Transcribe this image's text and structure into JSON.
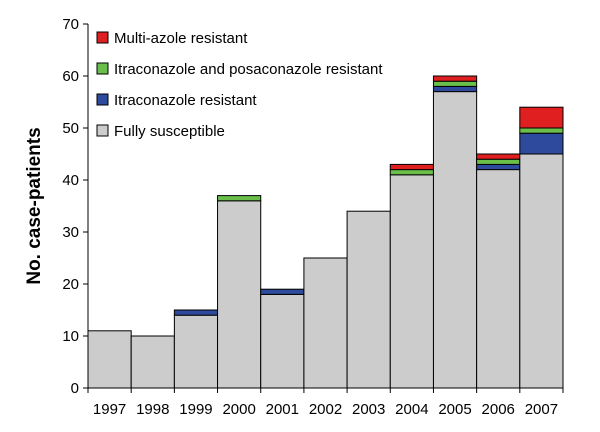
{
  "chart_data": {
    "type": "bar",
    "stacked": true,
    "categories": [
      "1997",
      "1998",
      "1999",
      "2000",
      "2001",
      "2002",
      "2003",
      "2004",
      "2005",
      "2006",
      "2007"
    ],
    "series": [
      {
        "name": "Fully susceptible",
        "color": "#cccccc",
        "values": [
          11,
          10,
          14,
          36,
          18,
          25,
          34,
          41,
          57,
          42,
          45
        ]
      },
      {
        "name": "Itraconazole resistant",
        "color": "#2e4a9c",
        "values": [
          0,
          0,
          1,
          0,
          1,
          0,
          0,
          0,
          1,
          1,
          4
        ]
      },
      {
        "name": "Itraconazole and posaconazole resistant",
        "color": "#6abf4b",
        "values": [
          0,
          0,
          0,
          1,
          0,
          0,
          0,
          1,
          1,
          1,
          1
        ]
      },
      {
        "name": "Multi-azole resistant",
        "color": "#e02020",
        "values": [
          0,
          0,
          0,
          0,
          0,
          0,
          0,
          1,
          1,
          1,
          4
        ]
      }
    ],
    "legend_order": [
      "Multi-azole resistant",
      "Itraconazole and posaconazole resistant",
      "Itraconazole resistant",
      "Fully susceptible"
    ],
    "ylabel": "No. case-patients",
    "ylim": [
      0,
      70
    ],
    "yticks": [
      0,
      10,
      20,
      30,
      40,
      50,
      60,
      70
    ],
    "grid": false,
    "legend_position": "top-left"
  }
}
